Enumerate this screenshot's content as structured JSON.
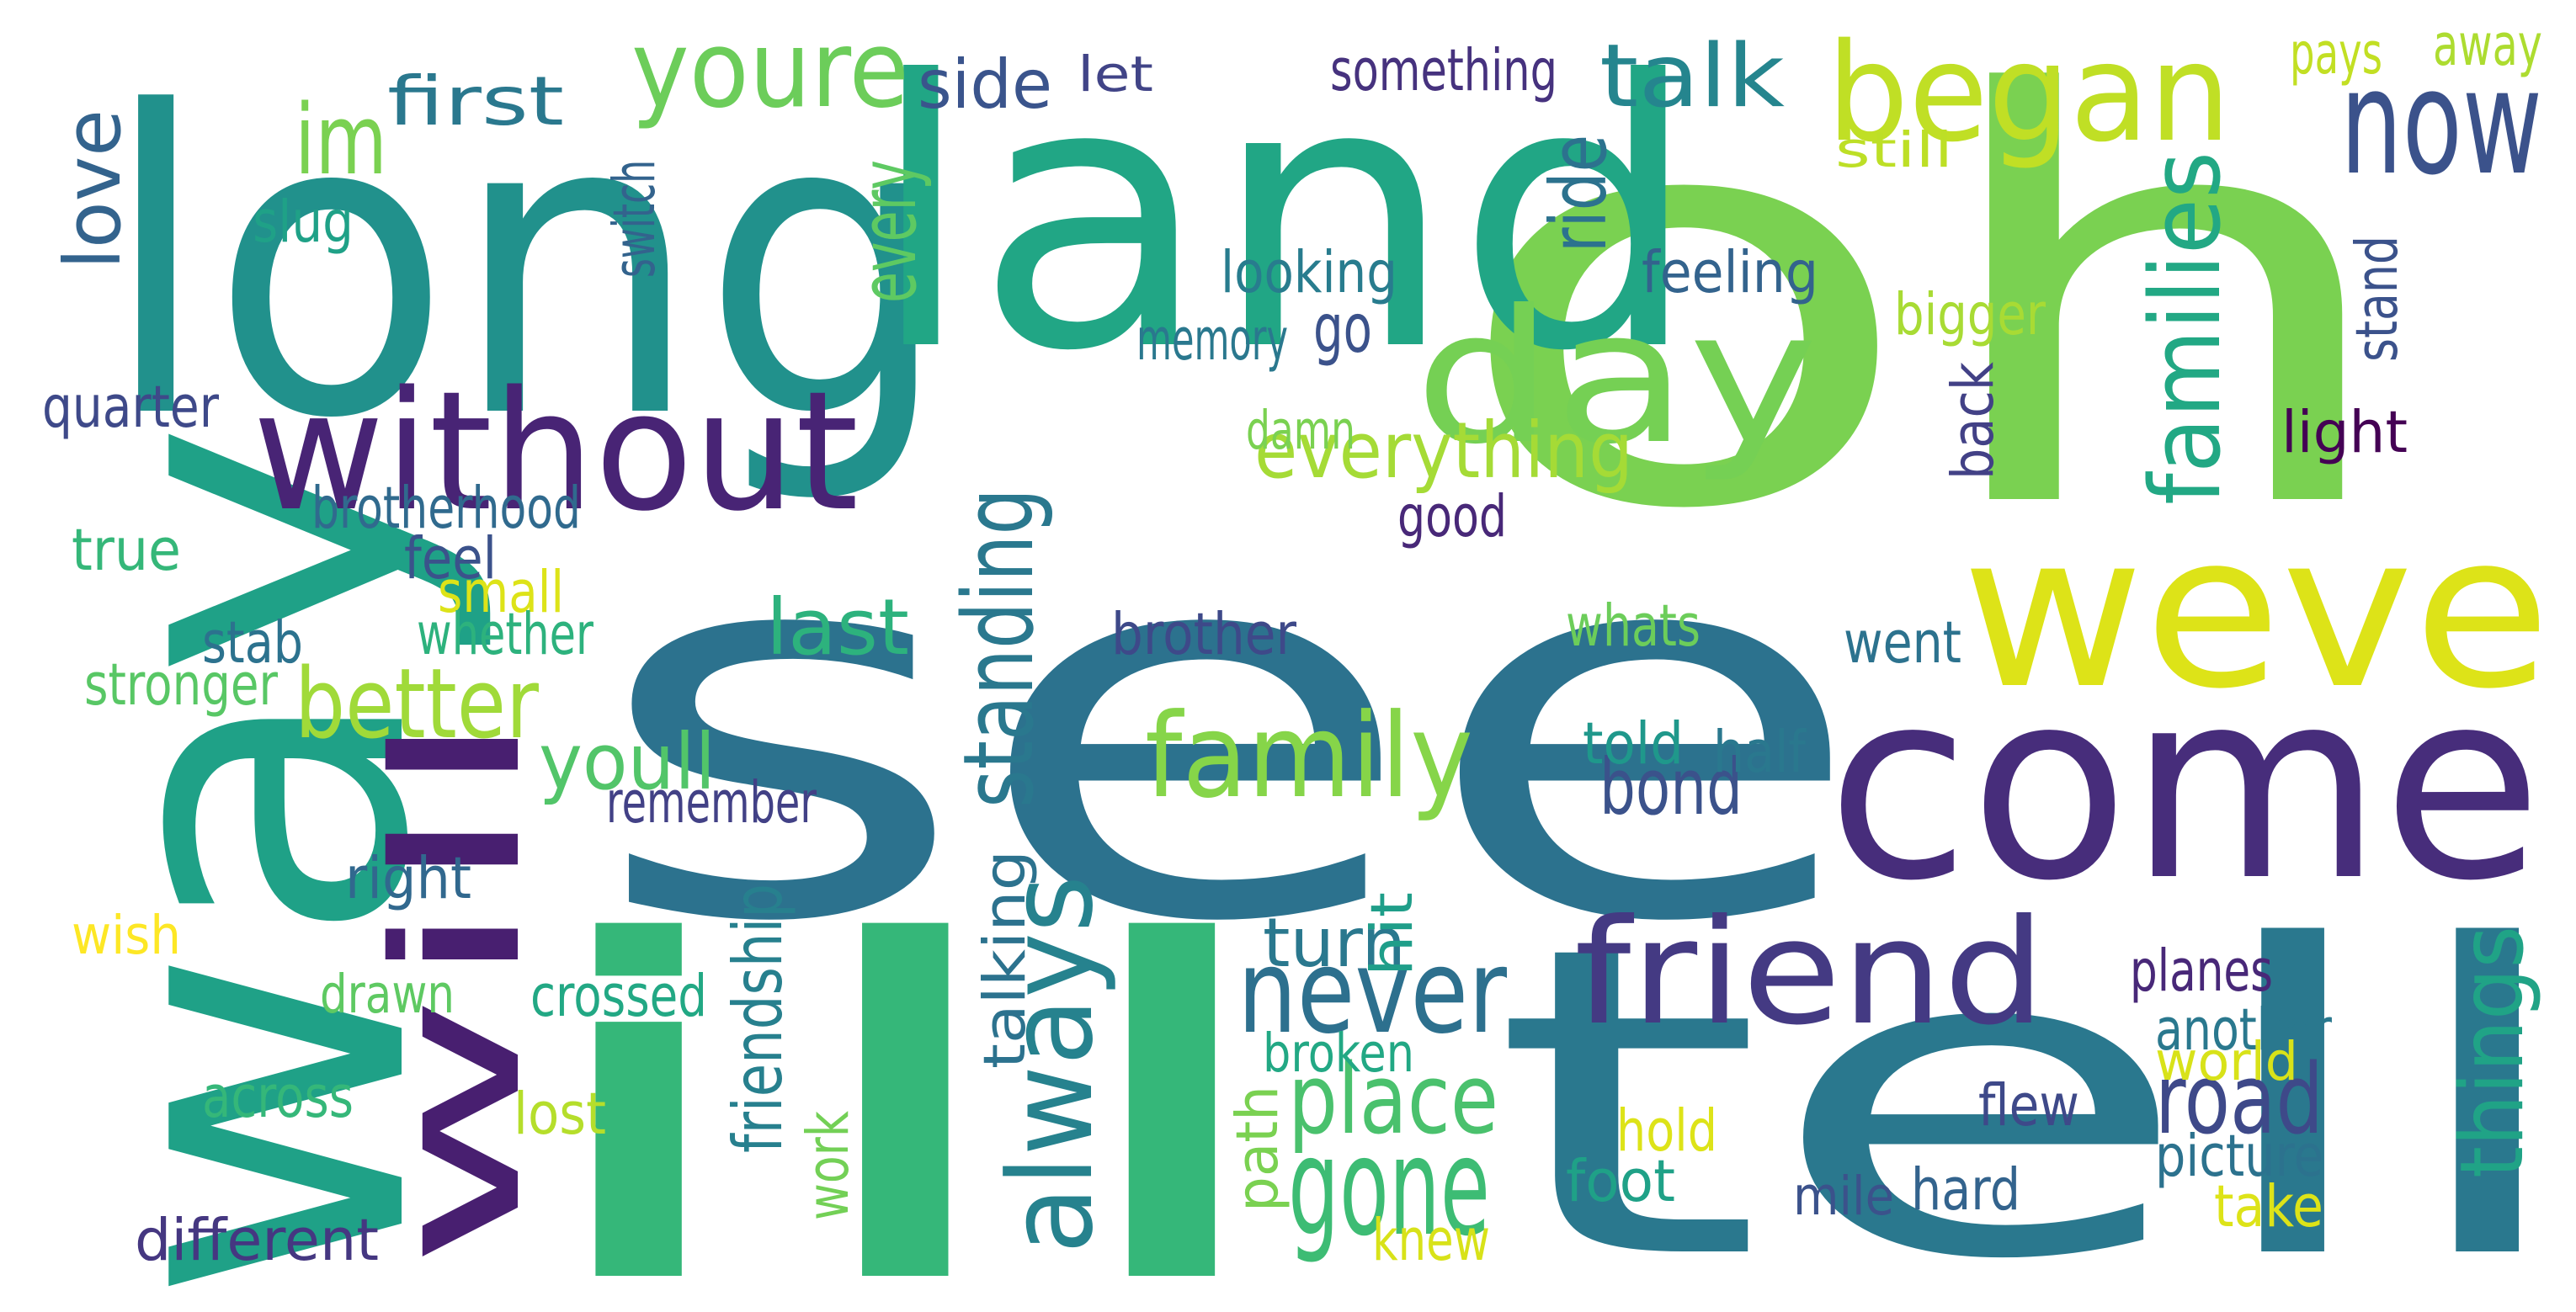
{
  "words": [
    {
      "id": "see",
      "text": "see",
      "color": "#2c728e"
    },
    {
      "id": "oh",
      "text": "oh",
      "color": "#7ad151"
    },
    {
      "id": "long",
      "text": "long",
      "color": "#21918c"
    },
    {
      "id": "land",
      "text": "land",
      "color": "#21a685"
    },
    {
      "id": "way",
      "text": "way",
      "color": "#1fa187"
    },
    {
      "id": "ill",
      "text": "ill",
      "color": "#35b779"
    },
    {
      "id": "tell",
      "text": "tell",
      "color": "#2a788e"
    },
    {
      "id": "come",
      "text": "come",
      "color": "#472d7b"
    },
    {
      "id": "weve",
      "text": "weve",
      "color": "#dde318"
    },
    {
      "id": "day",
      "text": "day",
      "color": "#75d054"
    },
    {
      "id": "without",
      "text": "without",
      "color": "#482475"
    },
    {
      "id": "will",
      "text": "will",
      "color": "#481f70"
    },
    {
      "id": "friend",
      "text": "friend",
      "color": "#443a83"
    },
    {
      "id": "began",
      "text": "began",
      "color": "#c0df25"
    },
    {
      "id": "now",
      "text": "now",
      "color": "#3b528b"
    },
    {
      "id": "youre",
      "text": "youre",
      "color": "#6ccd5a"
    },
    {
      "id": "family",
      "text": "family",
      "color": "#86d549"
    },
    {
      "id": "talk",
      "text": "talk",
      "color": "#25858e"
    },
    {
      "id": "im",
      "text": "im",
      "color": "#7ad151"
    },
    {
      "id": "never",
      "text": "never",
      "color": "#2d708e"
    },
    {
      "id": "gone",
      "text": "gone",
      "color": "#3dbc74"
    },
    {
      "id": "place",
      "text": "place",
      "color": "#4ac16d"
    },
    {
      "id": "always",
      "text": "always",
      "color": "#26828e"
    },
    {
      "id": "standing",
      "text": "standing",
      "color": "#2a788e"
    },
    {
      "id": "better",
      "text": "better",
      "color": "#a0da39"
    },
    {
      "id": "families",
      "text": "families",
      "color": "#22a884"
    },
    {
      "id": "things",
      "text": "things",
      "color": "#20a386"
    },
    {
      "id": "road",
      "text": "road",
      "color": "#3e4989"
    },
    {
      "id": "first",
      "text": "first",
      "color": "#2a788e"
    },
    {
      "id": "love",
      "text": "love",
      "color": "#33638d"
    },
    {
      "id": "last",
      "text": "last",
      "color": "#2db27d"
    },
    {
      "id": "youll",
      "text": "youll",
      "color": "#52c569"
    },
    {
      "id": "bond",
      "text": "bond",
      "color": "#3b528b"
    },
    {
      "id": "everything",
      "text": "everything",
      "color": "#a5db36"
    },
    {
      "id": "go",
      "text": "go",
      "color": "#3b528b"
    },
    {
      "id": "turn",
      "text": "turn",
      "color": "#2a788e"
    },
    {
      "id": "side",
      "text": "side",
      "color": "#3a548c"
    },
    {
      "id": "let",
      "text": "let",
      "color": "#414487"
    },
    {
      "id": "something",
      "text": "something",
      "color": "#46327e"
    },
    {
      "id": "pays",
      "text": "pays",
      "color": "#c2df23"
    },
    {
      "id": "away",
      "text": "away",
      "color": "#addc30"
    },
    {
      "id": "still",
      "text": "still",
      "color": "#bddf26"
    },
    {
      "id": "every",
      "text": "every",
      "color": "#5ec962"
    },
    {
      "id": "ride",
      "text": "ride",
      "color": "#2c728e"
    },
    {
      "id": "slug",
      "text": "slug",
      "color": "#1fa187"
    },
    {
      "id": "switch",
      "text": "switch",
      "color": "#33638d"
    },
    {
      "id": "looking",
      "text": "looking",
      "color": "#287c8e"
    },
    {
      "id": "feeling",
      "text": "feeling",
      "color": "#33638d"
    },
    {
      "id": "memory",
      "text": "memory",
      "color": "#2a788e"
    },
    {
      "id": "bigger",
      "text": "bigger",
      "color": "#a8db34"
    },
    {
      "id": "stand",
      "text": "stand",
      "color": "#3b528b"
    },
    {
      "id": "quarter",
      "text": "quarter",
      "color": "#3e4989"
    },
    {
      "id": "back",
      "text": "back",
      "color": "#424186"
    },
    {
      "id": "light",
      "text": "light",
      "color": "#440154"
    },
    {
      "id": "damn",
      "text": "damn",
      "color": "#7ad151"
    },
    {
      "id": "brotherhood",
      "text": "brotherhood",
      "color": "#306a8e"
    },
    {
      "id": "good",
      "text": "good",
      "color": "#482878"
    },
    {
      "id": "true",
      "text": "true",
      "color": "#35b779"
    },
    {
      "id": "feel",
      "text": "feel",
      "color": "#3b528b"
    },
    {
      "id": "small",
      "text": "small",
      "color": "#dde318"
    },
    {
      "id": "whats",
      "text": "whats",
      "color": "#6ccd5a"
    },
    {
      "id": "stab",
      "text": "stab",
      "color": "#2c728e"
    },
    {
      "id": "whether",
      "text": "whether",
      "color": "#2db27d"
    },
    {
      "id": "brother",
      "text": "brother",
      "color": "#3e4989"
    },
    {
      "id": "went",
      "text": "went",
      "color": "#2c728e"
    },
    {
      "id": "stronger",
      "text": "stronger",
      "color": "#58c765"
    },
    {
      "id": "told",
      "text": "told",
      "color": "#1f988b"
    },
    {
      "id": "half",
      "text": "half",
      "color": "#2a788e"
    },
    {
      "id": "remember",
      "text": "remember",
      "color": "#424186"
    },
    {
      "id": "right",
      "text": "right",
      "color": "#31688e"
    },
    {
      "id": "talking",
      "text": "talking",
      "color": "#2c728e"
    },
    {
      "id": "hit",
      "text": "hit",
      "color": "#1f9e89"
    },
    {
      "id": "friendship",
      "text": "friendship",
      "color": "#27808e"
    },
    {
      "id": "wish",
      "text": "wish",
      "color": "#fde725"
    },
    {
      "id": "crossed",
      "text": "crossed",
      "color": "#22a884"
    },
    {
      "id": "drawn",
      "text": "drawn",
      "color": "#5ec962"
    },
    {
      "id": "planes",
      "text": "planes",
      "color": "#482878"
    },
    {
      "id": "another",
      "text": "another",
      "color": "#2a788e"
    },
    {
      "id": "world",
      "text": "world",
      "color": "#d8e219"
    },
    {
      "id": "broken",
      "text": "broken",
      "color": "#22a884"
    },
    {
      "id": "across",
      "text": "across",
      "color": "#35b779"
    },
    {
      "id": "lost",
      "text": "lost",
      "color": "#b5de2b"
    },
    {
      "id": "path",
      "text": "path",
      "color": "#7ad151"
    },
    {
      "id": "hold",
      "text": "hold",
      "color": "#dde318"
    },
    {
      "id": "flew",
      "text": "flew",
      "color": "#3e4989"
    },
    {
      "id": "picture",
      "text": "picture",
      "color": "#2c728e"
    },
    {
      "id": "work",
      "text": "work",
      "color": "#73d056"
    },
    {
      "id": "foot",
      "text": "foot",
      "color": "#1fa187"
    },
    {
      "id": "mile",
      "text": "mile",
      "color": "#3b528b"
    },
    {
      "id": "hard",
      "text": "hard",
      "color": "#33638d"
    },
    {
      "id": "take",
      "text": "take",
      "color": "#dde318"
    },
    {
      "id": "different",
      "text": "different",
      "color": "#453781"
    },
    {
      "id": "knew",
      "text": "knew",
      "color": "#d8e219"
    }
  ]
}
